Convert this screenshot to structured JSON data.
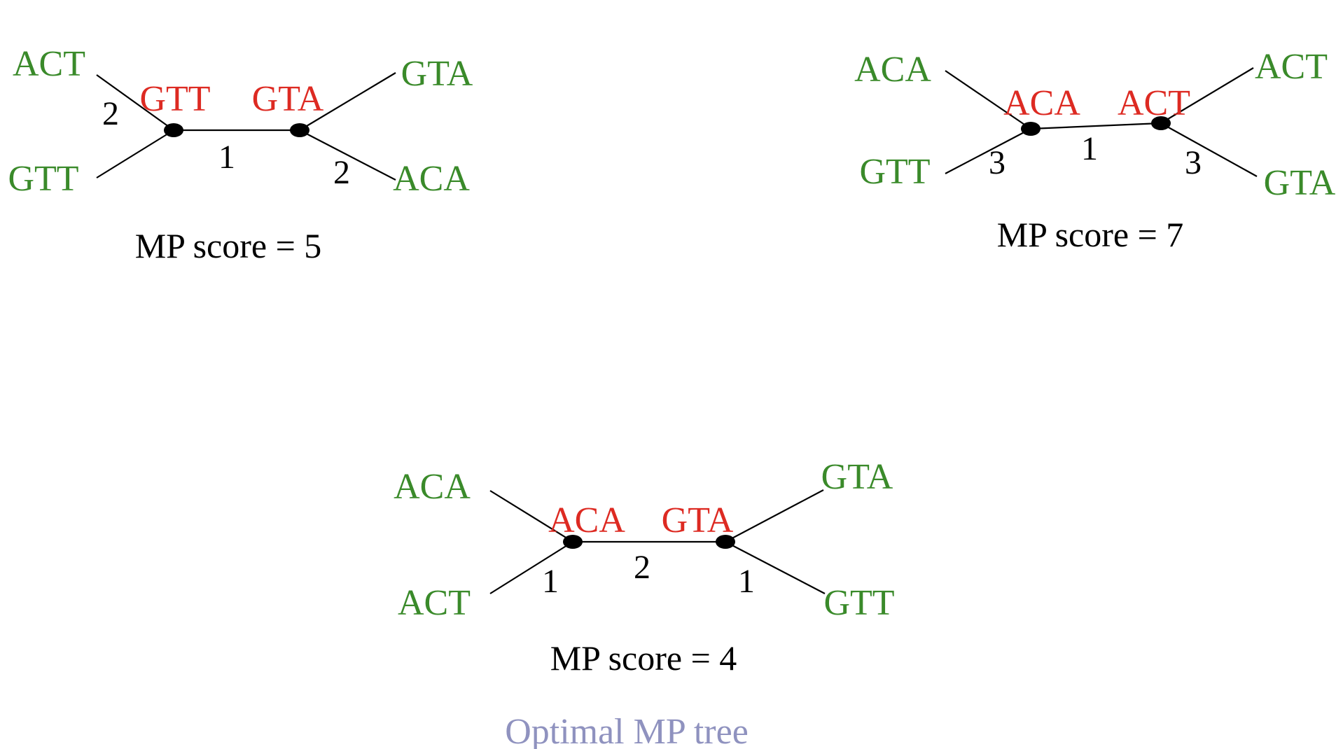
{
  "colors": {
    "leaf": "#3a8a2a",
    "internal": "#dd2a22",
    "edge": "#000000",
    "caption": "#8f92bf"
  },
  "trees": [
    {
      "leaves": {
        "top_left": "ACT",
        "bottom_left": "GTT",
        "top_right": "GTA",
        "bottom_right": "ACA"
      },
      "internal_nodes": {
        "left": "GTT",
        "right": "GTA"
      },
      "edge_weights": {
        "top_left": "2",
        "center": "1",
        "bottom_right": "2"
      },
      "score": "MP score = 5"
    },
    {
      "leaves": {
        "top_left": "ACA",
        "bottom_left": "GTT",
        "top_right": "ACT",
        "bottom_right": "GTA"
      },
      "internal_nodes": {
        "left": "ACA",
        "right": "ACT"
      },
      "edge_weights": {
        "bottom_left": "3",
        "center": "1",
        "bottom_right": "3"
      },
      "score": "MP score = 7"
    },
    {
      "leaves": {
        "top_left": "ACA",
        "bottom_left": "ACT",
        "top_right": "GTA",
        "bottom_right": "GTT"
      },
      "internal_nodes": {
        "left": "ACA",
        "right": "GTA"
      },
      "edge_weights": {
        "bottom_left": "1",
        "center": "2",
        "bottom_right": "1"
      },
      "score": "MP score = 4",
      "caption": "Optimal MP tree"
    }
  ]
}
